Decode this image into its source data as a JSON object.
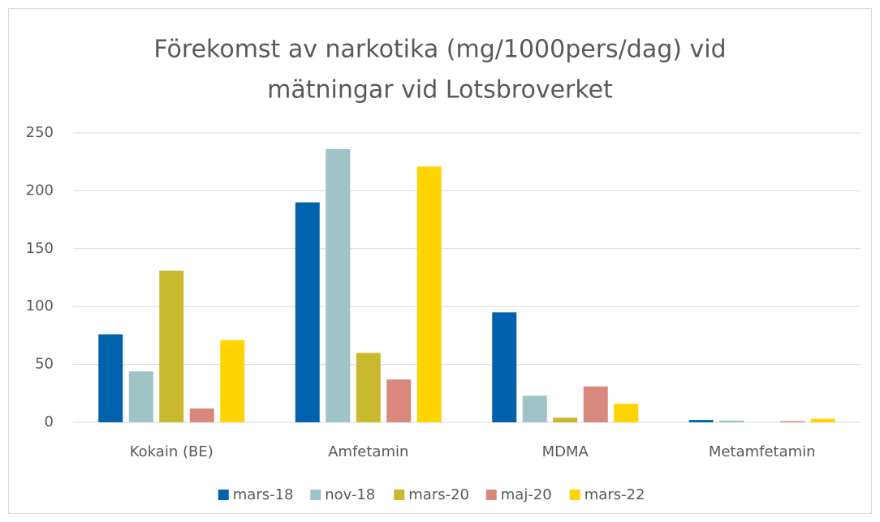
{
  "chart_data": {
    "type": "bar",
    "title": [
      "Förekomst av narkotika (mg/1000pers/dag) vid",
      "mätningar vid Lotsbroverket"
    ],
    "categories": [
      "Kokain (BE)",
      "Amfetamin",
      "MDMA",
      "Metamfetamin"
    ],
    "series": [
      {
        "name": "mars-18",
        "color": "#0062ad",
        "values": [
          76,
          190,
          95,
          2
        ]
      },
      {
        "name": "nov-18",
        "color": "#9fc3c6",
        "values": [
          44,
          236,
          23,
          1.5
        ]
      },
      {
        "name": "mars-20",
        "color": "#c9b92e",
        "values": [
          131,
          60,
          4,
          0
        ]
      },
      {
        "name": "maj-20",
        "color": "#d9887d",
        "values": [
          12,
          37,
          31,
          1
        ]
      },
      {
        "name": "mars-22",
        "color": "#ffd400",
        "values": [
          71,
          221,
          16,
          3
        ]
      }
    ],
    "ylim": [
      0,
      250
    ],
    "yticks": [
      0,
      50,
      100,
      150,
      200,
      250
    ],
    "grid": true,
    "legend": "bottom"
  }
}
